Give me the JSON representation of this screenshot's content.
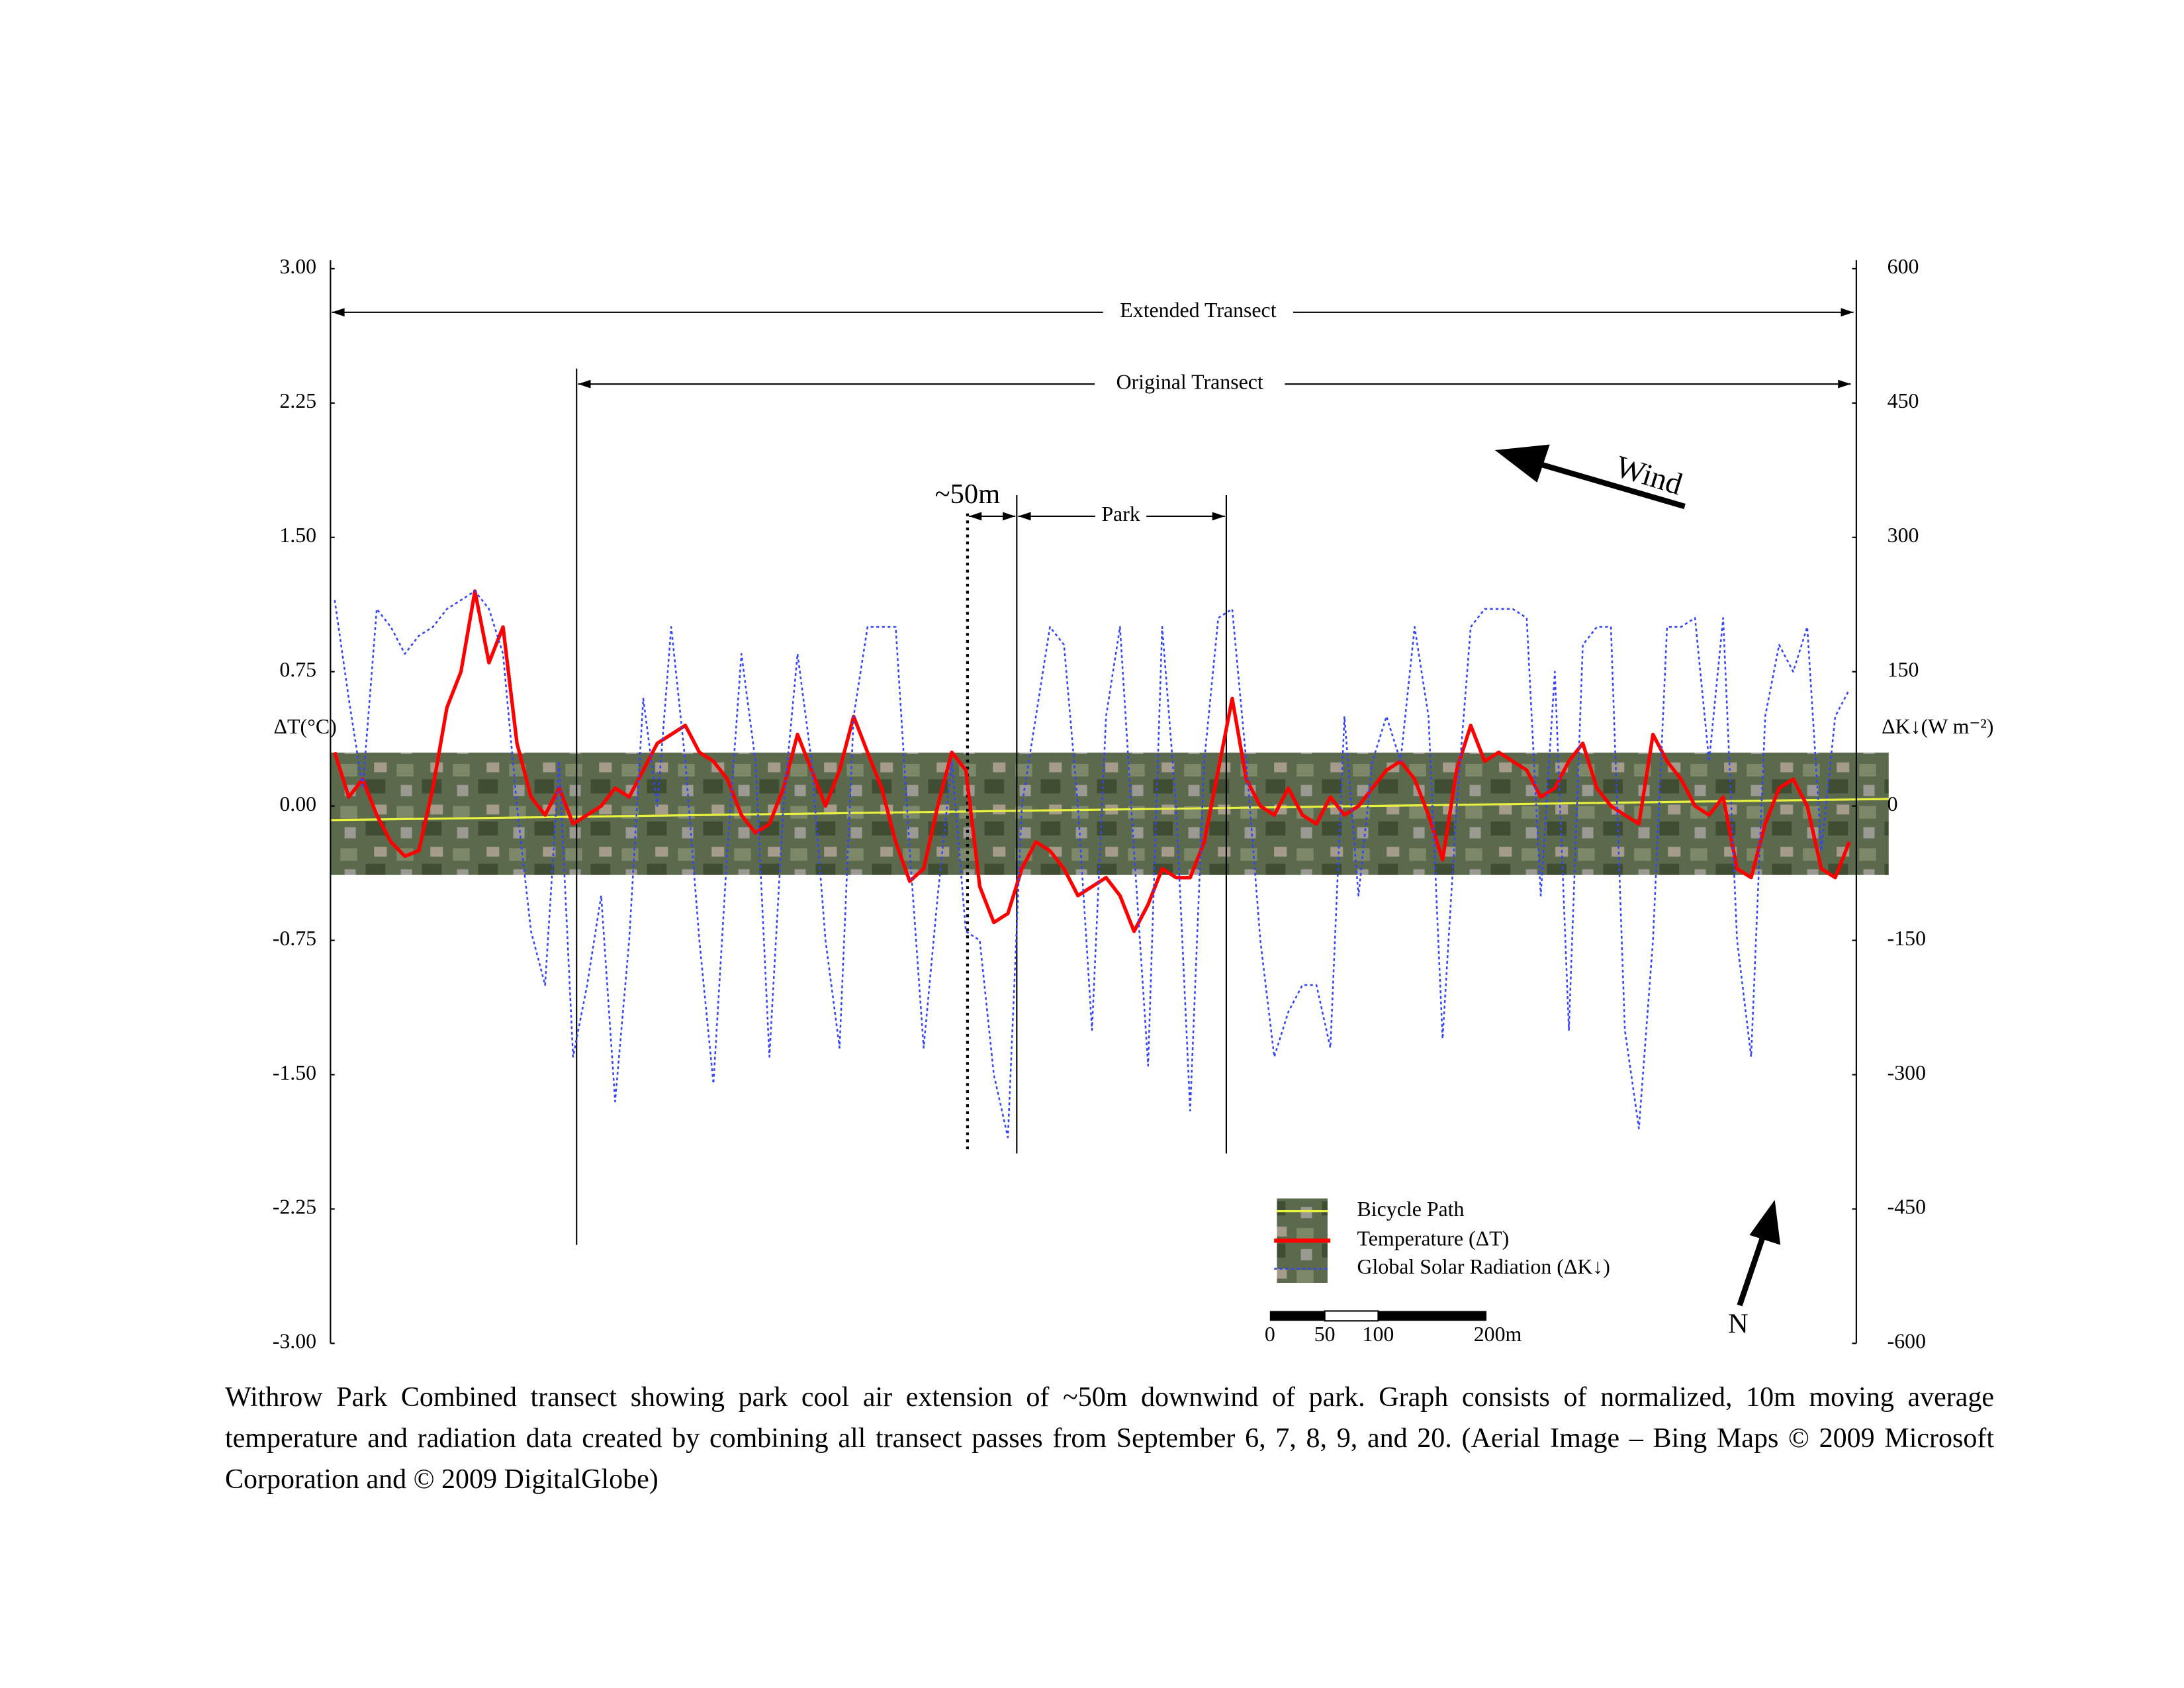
{
  "chart_data": {
    "type": "line",
    "y_label": "ΔT(°C)",
    "y2_label": "ΔK↓(W m⁻²)",
    "ylim": [
      -3,
      3
    ],
    "yticks": [
      {
        "value": 3,
        "label": "3.00"
      },
      2.25,
      {
        "value": 1.5,
        "label": "1.50"
      },
      0.75,
      {
        "value": 0,
        "label": "0.00"
      },
      -0.75,
      {
        "value": -1.5,
        "label": "-1.50"
      },
      -2.25,
      {
        "value": -3,
        "label": "-3.00"
      }
    ],
    "y2lim": [
      -600,
      600
    ],
    "y2ticks": [
      600,
      450,
      300,
      150,
      0,
      -150,
      -300,
      -450,
      -600
    ],
    "series": [
      {
        "name": "Temperature (ΔT)",
        "color": "#ff0000",
        "dashed": false,
        "values": [
          0.3,
          0.05,
          0.15,
          -0.05,
          -0.2,
          -0.28,
          -0.25,
          0.1,
          0.55,
          0.75,
          1.2,
          0.8,
          1.0,
          0.35,
          0.05,
          -0.05,
          0.1,
          -0.1,
          -0.05,
          0.0,
          0.1,
          0.05,
          0.2,
          0.35,
          0.4,
          0.45,
          0.3,
          0.25,
          0.15,
          -0.05,
          -0.15,
          -0.1,
          0.1,
          0.4,
          0.2,
          0.0,
          0.2,
          0.5,
          0.3,
          0.1,
          -0.2,
          -0.42,
          -0.35,
          0.0,
          0.3,
          0.2,
          -0.45,
          -0.65,
          -0.6,
          -0.35,
          -0.2,
          -0.25,
          -0.35,
          -0.5,
          -0.45,
          -0.4,
          -0.5,
          -0.7,
          -0.55,
          -0.35,
          -0.4,
          -0.4,
          -0.2,
          0.2,
          0.6,
          0.15,
          0.0,
          -0.05,
          0.1,
          -0.05,
          -0.1,
          0.05,
          -0.05,
          0.0,
          0.1,
          0.2,
          0.25,
          0.15,
          -0.05,
          -0.3,
          0.2,
          0.45,
          0.25,
          0.3,
          0.25,
          0.2,
          0.05,
          0.1,
          0.25,
          0.35,
          0.1,
          0.0,
          -0.05,
          -0.1,
          0.4,
          0.25,
          0.15,
          0.0,
          -0.05,
          0.05,
          -0.35,
          -0.4,
          -0.1,
          0.1,
          0.15,
          0.0,
          -0.35,
          -0.4,
          -0.2
        ]
      },
      {
        "name": "Global Solar Radiation (ΔK↓)",
        "color": "#3344ff",
        "dashed": true,
        "axis": "y2",
        "values": [
          230,
          120,
          20,
          220,
          200,
          170,
          190,
          200,
          220,
          230,
          240,
          220,
          170,
          0,
          -140,
          -200,
          50,
          -280,
          -200,
          -100,
          -330,
          -150,
          120,
          0,
          200,
          50,
          -150,
          -310,
          -50,
          170,
          50,
          -280,
          0,
          170,
          50,
          -150,
          -270,
          100,
          200,
          200,
          200,
          -50,
          -270,
          -100,
          50,
          -140,
          -150,
          -300,
          -370,
          0,
          100,
          200,
          180,
          0,
          -250,
          100,
          200,
          -50,
          -290,
          200,
          0,
          -340,
          50,
          210,
          220,
          50,
          -150,
          -280,
          -230,
          -200,
          -200,
          -270,
          100,
          -100,
          50,
          100,
          50,
          200,
          100,
          -260,
          0,
          200,
          220,
          220,
          220,
          210,
          -100,
          150,
          -250,
          180,
          200,
          200,
          -250,
          -360,
          -150,
          200,
          200,
          210,
          50,
          210,
          -150,
          -280,
          100,
          180,
          150,
          200,
          -50,
          100,
          130
        ]
      }
    ],
    "bicycle_path_label": "Bicycle Path",
    "annotations": {
      "extended": "Extended Transect",
      "original": "Original Transect",
      "fifty": "~50m",
      "park": "Park",
      "wind": "Wind",
      "north": "N"
    },
    "scale_bar": [
      "0",
      "50",
      "100",
      "200m"
    ],
    "caption": "Withrow Park Combined transect showing park cool air extension of ~50m downwind of park. Graph consists of normalized, 10m moving average temperature and radiation data created by combining all transect passes from September 6, 7, 8, 9, and 20.  (Aerial Image – Bing Maps © 2009 Microsoft Corporation and © 2009 DigitalGlobe)"
  }
}
